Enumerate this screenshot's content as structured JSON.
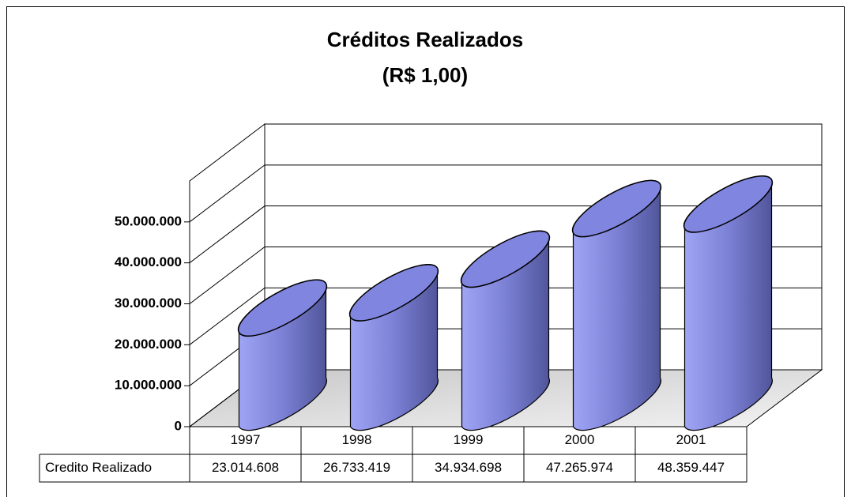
{
  "chart_data": {
    "type": "bar3d",
    "title": "Créditos Realizados",
    "subtitle": "(R$ 1,00)",
    "categories": [
      "1997",
      "1998",
      "1999",
      "2000",
      "2001"
    ],
    "series": [
      {
        "name": "Credito Realizado",
        "color": "#8085e0",
        "values": [
          23014608,
          26733419,
          34934698,
          47265974,
          48359447
        ],
        "value_labels": [
          "23.014.608",
          "26.733.419",
          "34.934.698",
          "47.265.974",
          "48.359.447"
        ]
      }
    ],
    "ylim": [
      0,
      60000000
    ],
    "yticks": [
      0,
      {
        "value": 10000000,
        "label": "10.000.000"
      },
      {
        "value": 20000000,
        "label": "20.000.000"
      },
      {
        "value": 30000000,
        "label": "30.000.000"
      },
      {
        "value": 40000000,
        "label": "40.000.000"
      },
      {
        "value": 50000000,
        "label": "50.000.000"
      }
    ],
    "grid": true,
    "title_color": "#0000ff"
  }
}
